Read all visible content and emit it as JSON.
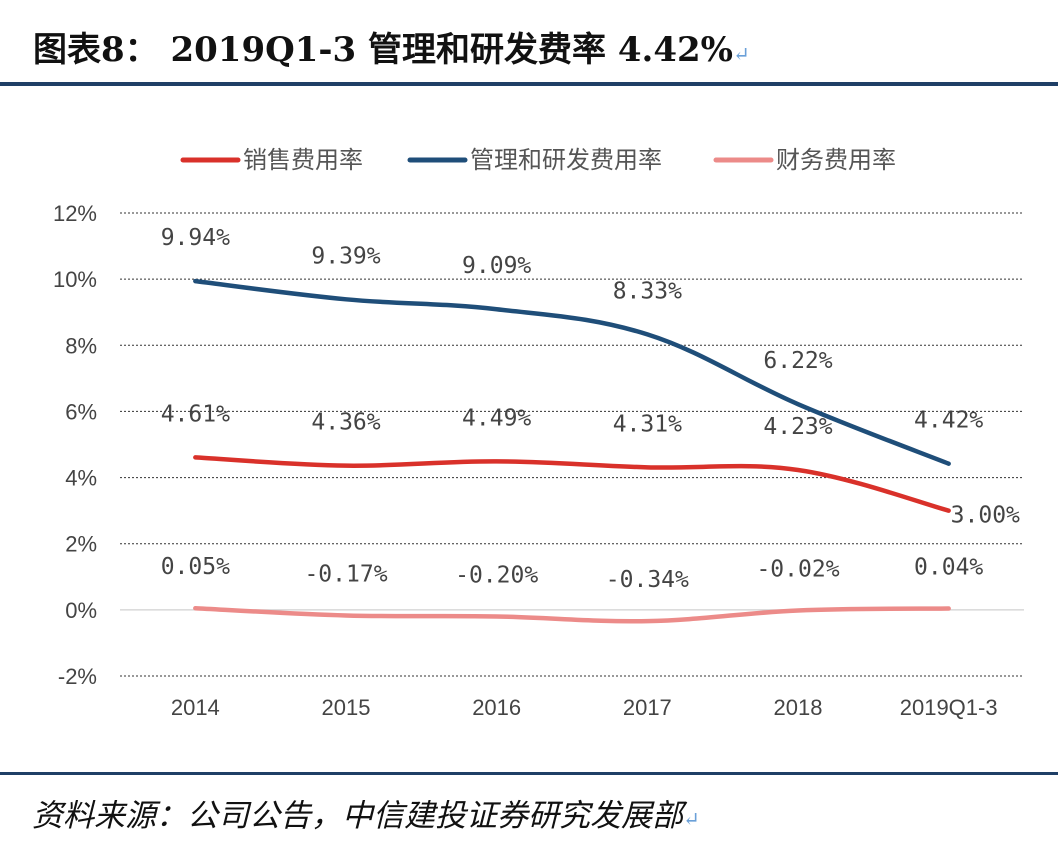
{
  "header": {
    "title": "图表8： 2019Q1-3 管理和研发费率 4.42%",
    "return_mark": "↵"
  },
  "footer": {
    "source": "资料来源：公司公告，中信建投证券研究发展部",
    "return_mark": "↵"
  },
  "chart_data": {
    "type": "line",
    "categories": [
      "2014",
      "2015",
      "2016",
      "2017",
      "2018",
      "2019Q1-3"
    ],
    "ylim": [
      -2,
      12
    ],
    "yticks": [
      -2,
      0,
      2,
      4,
      6,
      8,
      10,
      12
    ],
    "ytick_labels": [
      "-2%",
      "0%",
      "2%",
      "4%",
      "6%",
      "8%",
      "10%",
      "12%"
    ],
    "grid": true,
    "legend_position": "top",
    "series": [
      {
        "name": "销售费用率",
        "color": "#d9312a",
        "values": [
          4.61,
          4.36,
          4.49,
          4.31,
          4.23,
          3.0
        ],
        "labels": [
          "4.61%",
          "4.36%",
          "4.49%",
          "4.31%",
          "4.23%",
          "3.00%"
        ]
      },
      {
        "name": "管理和研发费用率",
        "color": "#1f4e79",
        "values": [
          9.94,
          9.39,
          9.09,
          8.33,
          6.22,
          4.42
        ],
        "labels": [
          "9.94%",
          "9.39%",
          "9.09%",
          "8.33%",
          "6.22%",
          "4.42%"
        ]
      },
      {
        "name": "财务费用率",
        "color": "#ec8b89",
        "values": [
          0.05,
          -0.17,
          -0.2,
          -0.34,
          -0.02,
          0.04
        ],
        "labels": [
          "0.05%",
          "-0.17%",
          "-0.20%",
          "-0.34%",
          "-0.02%",
          "0.04%"
        ]
      }
    ]
  }
}
